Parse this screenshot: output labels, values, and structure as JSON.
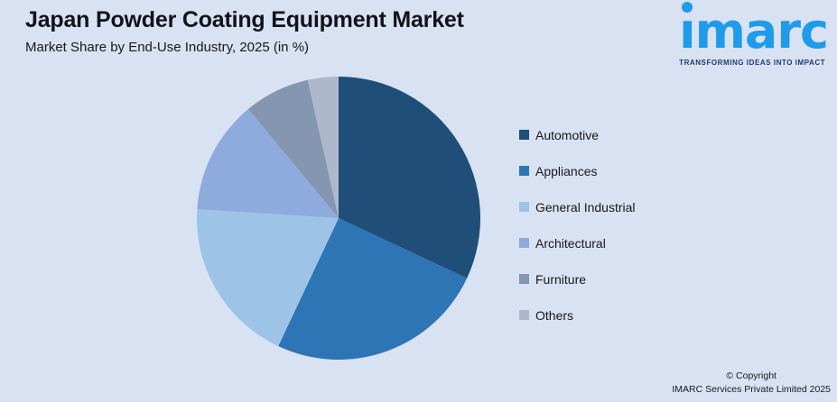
{
  "background_color": "#D9E2F2",
  "header": {
    "title": "Japan Powder Coating Equipment Market",
    "subtitle": "Market Share by End-Use Industry, 2025 (in %)"
  },
  "logo": {
    "brand": "imarc",
    "brand_display": "ımarc",
    "tagline": "TRANSFORMING IDEAS INTO IMPACT",
    "brand_color": "#1E9BEA",
    "tagline_color": "#1B3C6E"
  },
  "chart_data": {
    "type": "pie",
    "title": "Japan Powder Coating Equipment Market",
    "subtitle": "Market Share by End-Use Industry, 2025 (in %)",
    "unit": "%",
    "start_angle_deg": 0,
    "direction": "clockwise",
    "categories": [
      "Automotive",
      "Appliances",
      "General Industrial",
      "Architectural",
      "Furniture",
      "Others"
    ],
    "values": [
      32,
      25,
      19,
      13,
      7.5,
      3.5
    ],
    "colors": [
      "#1F4E79",
      "#2E75B6",
      "#9DC3E6",
      "#8FAADC",
      "#8496B0",
      "#ADB9CA"
    ],
    "legend_position": "right",
    "data_labels_shown": false
  },
  "footer": {
    "copyright_line1": "© Copyright",
    "copyright_line2": "IMARC Services Private Limited 2025"
  }
}
